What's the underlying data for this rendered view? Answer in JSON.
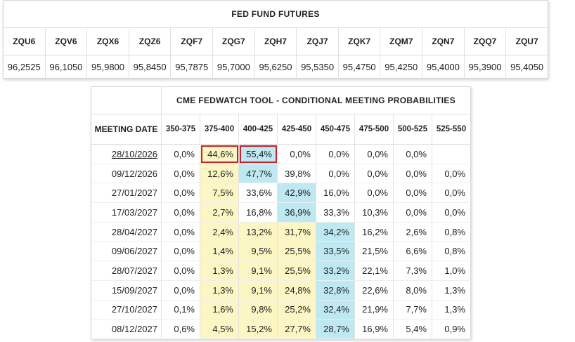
{
  "futures": {
    "title": "FED FUND FUTURES",
    "columns": [
      {
        "code": "ZQU6",
        "price": "96,2525"
      },
      {
        "code": "ZQV6",
        "price": "96,1050"
      },
      {
        "code": "ZQX6",
        "price": "95,9800"
      },
      {
        "code": "ZQZ6",
        "price": "95,8450"
      },
      {
        "code": "ZQF7",
        "price": "95,7875"
      },
      {
        "code": "ZQG7",
        "price": "95,7000"
      },
      {
        "code": "ZQH7",
        "price": "95,6250"
      },
      {
        "code": "ZQJ7",
        "price": "95,5350"
      },
      {
        "code": "ZQK7",
        "price": "95,4750"
      },
      {
        "code": "ZQM7",
        "price": "95,4250"
      },
      {
        "code": "ZQN7",
        "price": "95,4000"
      },
      {
        "code": "ZQQ7",
        "price": "95,3900"
      },
      {
        "code": "ZQU7",
        "price": "95,4050"
      }
    ]
  },
  "fedwatch": {
    "title": "CME FEDWATCH TOOL - CONDITIONAL MEETING PROBABILITIES",
    "meeting_date_header": "MEETING DATE",
    "ranges": [
      "350-375",
      "375-400",
      "400-425",
      "425-450",
      "450-475",
      "475-500",
      "500-525",
      "525-550"
    ],
    "colors": {
      "yellow": "#fbf6c4",
      "blue": "#bfe9f2",
      "highlight_border": "#c8232c"
    },
    "rows": [
      {
        "date": "28/10/2026",
        "linked": true,
        "values": [
          "0,0%",
          "44,6%",
          "55,4%",
          "0,0%",
          "0,0%",
          "0,0%",
          "0,0%",
          ""
        ],
        "yellow": [
          1
        ],
        "blue": [
          2
        ],
        "highlighted": [
          1,
          2
        ]
      },
      {
        "date": "09/12/2026",
        "linked": false,
        "values": [
          "0,0%",
          "12,6%",
          "47,7%",
          "39,8%",
          "0,0%",
          "0,0%",
          "0,0%",
          "0,0%"
        ],
        "yellow": [
          1
        ],
        "blue": [
          2
        ],
        "highlighted": []
      },
      {
        "date": "27/01/2027",
        "linked": false,
        "values": [
          "0,0%",
          "7,5%",
          "33,6%",
          "42,9%",
          "16,0%",
          "0,0%",
          "0,0%",
          "0,0%"
        ],
        "yellow": [
          1
        ],
        "blue": [
          3
        ],
        "highlighted": []
      },
      {
        "date": "17/03/2027",
        "linked": false,
        "values": [
          "0,0%",
          "2,7%",
          "16,8%",
          "36,9%",
          "33,3%",
          "10,3%",
          "0,0%",
          "0,0%"
        ],
        "yellow": [
          1
        ],
        "blue": [
          3
        ],
        "highlighted": []
      },
      {
        "date": "28/04/2027",
        "linked": false,
        "values": [
          "0,0%",
          "2,4%",
          "13,2%",
          "31,7%",
          "34,2%",
          "16,2%",
          "2,6%",
          "0,8%"
        ],
        "yellow": [
          1,
          2,
          3
        ],
        "blue": [
          4
        ],
        "highlighted": []
      },
      {
        "date": "09/06/2027",
        "linked": false,
        "values": [
          "0,0%",
          "1,4%",
          "9,5%",
          "25,5%",
          "33,5%",
          "21,5%",
          "6,6%",
          "0,8%"
        ],
        "yellow": [
          1,
          2,
          3
        ],
        "blue": [
          4
        ],
        "highlighted": []
      },
      {
        "date": "28/07/2027",
        "linked": false,
        "values": [
          "0,0%",
          "1,3%",
          "9,1%",
          "25,5%",
          "33,2%",
          "22,1%",
          "7,3%",
          "1,0%"
        ],
        "yellow": [
          1,
          2,
          3
        ],
        "blue": [
          4
        ],
        "highlighted": []
      },
      {
        "date": "15/09/2027",
        "linked": false,
        "values": [
          "0,0%",
          "1,3%",
          "9,1%",
          "24,8%",
          "32,8%",
          "22,6%",
          "8,0%",
          "1,3%"
        ],
        "yellow": [
          1,
          2,
          3
        ],
        "blue": [
          4
        ],
        "highlighted": []
      },
      {
        "date": "27/10/2027",
        "linked": false,
        "values": [
          "0,1%",
          "1,6%",
          "9,8%",
          "25,2%",
          "32,4%",
          "21,9%",
          "7,7%",
          "1,3%"
        ],
        "yellow": [
          1,
          2,
          3
        ],
        "blue": [
          4
        ],
        "highlighted": []
      },
      {
        "date": "08/12/2027",
        "linked": false,
        "values": [
          "0,6%",
          "4,5%",
          "15,2%",
          "27,7%",
          "28,7%",
          "16,9%",
          "5,4%",
          "0,9%"
        ],
        "yellow": [
          1,
          2,
          3
        ],
        "blue": [
          4
        ],
        "highlighted": []
      }
    ]
  }
}
